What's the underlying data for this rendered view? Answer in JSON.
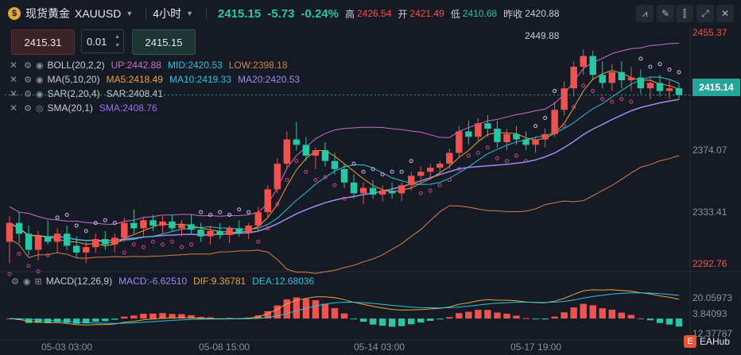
{
  "header": {
    "symbol_name": "现货黄金",
    "symbol_code": "XAUUSD",
    "timeframe": "4小时",
    "last_price": "2415.15",
    "change": "-5.73",
    "change_pct": "-0.24%",
    "high_label": "高",
    "high": "2426.54",
    "open_label": "开",
    "open": "2421.49",
    "low_label": "低",
    "low": "2410.68",
    "prev_close_label": "昨收",
    "prev_close": "2420.88"
  },
  "order": {
    "sell_price": "2415.31",
    "lot": "0.01",
    "buy_price": "2415.15"
  },
  "indicators": {
    "boll": {
      "name": "BOLL(20,2,2)",
      "up": "UP:2442.88",
      "mid": "MID:2420.53",
      "low": "LOW:2398.18"
    },
    "ma": {
      "name": "MA(5,10,20)",
      "ma5": "MA5:2418.49",
      "ma10": "MA10:2419.33",
      "ma20": "MA20:2420.53"
    },
    "sar": {
      "name": "SAR(2,20,4)",
      "value": "SAR:2408.41"
    },
    "sma": {
      "name": "SMA(20,1)",
      "value": "SMA:2408.76"
    },
    "macd": {
      "name": "MACD(12,26,9)",
      "macd": "MACD:-6.62510",
      "dif": "DIF:9.36781",
      "dea": "DEA:12.68036"
    }
  },
  "price_axis": [
    "2455.37",
    "2374.07",
    "2333.41",
    "2292.76"
  ],
  "current_price_tag": "2415.14",
  "peak_label": "2449.88",
  "macd_axis": [
    "20.05973",
    "3.84093",
    "12.37787"
  ],
  "time_axis": [
    "05-03 03:00",
    "05-08 15:00",
    "05-14 03:00",
    "05-17 19:00"
  ],
  "watermark": "EAHub",
  "colors": {
    "up": "#ef5350",
    "down": "#26c6a6",
    "boll": "#c86fc9",
    "ma5": "#e8a53a",
    "ma10": "#26c6da",
    "ma20": "#9b8cf0",
    "sar": "#d8428f",
    "sma": "#d0824a",
    "sar_up": "#c8bdf2"
  },
  "chart_data": {
    "type": "candlestick",
    "price_range": [
      2285,
      2462
    ],
    "candles": [
      [
        2306,
        2325,
        2290,
        2320
      ],
      [
        2320,
        2328,
        2305,
        2312
      ],
      [
        2312,
        2318,
        2296,
        2300
      ],
      [
        2300,
        2314,
        2292,
        2310
      ],
      [
        2310,
        2322,
        2304,
        2306
      ],
      [
        2306,
        2316,
        2298,
        2312
      ],
      [
        2312,
        2318,
        2300,
        2303
      ],
      [
        2303,
        2310,
        2294,
        2298
      ],
      [
        2298,
        2306,
        2290,
        2302
      ],
      [
        2302,
        2312,
        2298,
        2308
      ],
      [
        2308,
        2314,
        2300,
        2304
      ],
      [
        2304,
        2312,
        2298,
        2309
      ],
      [
        2309,
        2324,
        2306,
        2320
      ],
      [
        2320,
        2330,
        2312,
        2316
      ],
      [
        2316,
        2324,
        2310,
        2322
      ],
      [
        2322,
        2326,
        2314,
        2318
      ],
      [
        2318,
        2325,
        2312,
        2321
      ],
      [
        2321,
        2326,
        2314,
        2316
      ],
      [
        2316,
        2322,
        2310,
        2319
      ],
      [
        2319,
        2326,
        2312,
        2315
      ],
      [
        2315,
        2320,
        2306,
        2310
      ],
      [
        2310,
        2318,
        2304,
        2314
      ],
      [
        2314,
        2320,
        2308,
        2311
      ],
      [
        2311,
        2318,
        2305,
        2316
      ],
      [
        2316,
        2322,
        2310,
        2313
      ],
      [
        2313,
        2320,
        2308,
        2318
      ],
      [
        2318,
        2332,
        2314,
        2328
      ],
      [
        2328,
        2348,
        2324,
        2345
      ],
      [
        2345,
        2368,
        2342,
        2364
      ],
      [
        2364,
        2388,
        2360,
        2382
      ],
      [
        2382,
        2395,
        2374,
        2378
      ],
      [
        2378,
        2384,
        2366,
        2370
      ],
      [
        2370,
        2376,
        2360,
        2374
      ],
      [
        2374,
        2380,
        2362,
        2366
      ],
      [
        2366,
        2372,
        2356,
        2360
      ],
      [
        2360,
        2364,
        2346,
        2350
      ],
      [
        2350,
        2356,
        2338,
        2342
      ],
      [
        2342,
        2350,
        2334,
        2346
      ],
      [
        2346,
        2352,
        2338,
        2341
      ],
      [
        2341,
        2348,
        2336,
        2344
      ],
      [
        2344,
        2350,
        2338,
        2342
      ],
      [
        2342,
        2350,
        2336,
        2348
      ],
      [
        2348,
        2358,
        2344,
        2355
      ],
      [
        2355,
        2362,
        2350,
        2358
      ],
      [
        2358,
        2364,
        2352,
        2361
      ],
      [
        2361,
        2366,
        2356,
        2364
      ],
      [
        2364,
        2375,
        2360,
        2372
      ],
      [
        2372,
        2392,
        2368,
        2388
      ],
      [
        2388,
        2396,
        2378,
        2384
      ],
      [
        2384,
        2398,
        2380,
        2394
      ],
      [
        2394,
        2400,
        2384,
        2390
      ],
      [
        2390,
        2396,
        2376,
        2380
      ],
      [
        2380,
        2390,
        2374,
        2386
      ],
      [
        2386,
        2392,
        2378,
        2382
      ],
      [
        2382,
        2388,
        2374,
        2378
      ],
      [
        2378,
        2384,
        2372,
        2382
      ],
      [
        2382,
        2390,
        2376,
        2386
      ],
      [
        2386,
        2410,
        2384,
        2404
      ],
      [
        2404,
        2425,
        2400,
        2420
      ],
      [
        2420,
        2440,
        2414,
        2436
      ],
      [
        2436,
        2449,
        2430,
        2444
      ],
      [
        2444,
        2448,
        2426,
        2430
      ],
      [
        2430,
        2440,
        2420,
        2424
      ],
      [
        2424,
        2438,
        2418,
        2432
      ],
      [
        2432,
        2440,
        2420,
        2426
      ],
      [
        2426,
        2436,
        2418,
        2428
      ],
      [
        2428,
        2434,
        2416,
        2420
      ],
      [
        2420,
        2428,
        2412,
        2424
      ],
      [
        2424,
        2430,
        2414,
        2418
      ],
      [
        2418,
        2426,
        2412,
        2420
      ],
      [
        2420,
        2424,
        2412,
        2415
      ]
    ],
    "macd_range": [
      -14,
      22
    ]
  }
}
